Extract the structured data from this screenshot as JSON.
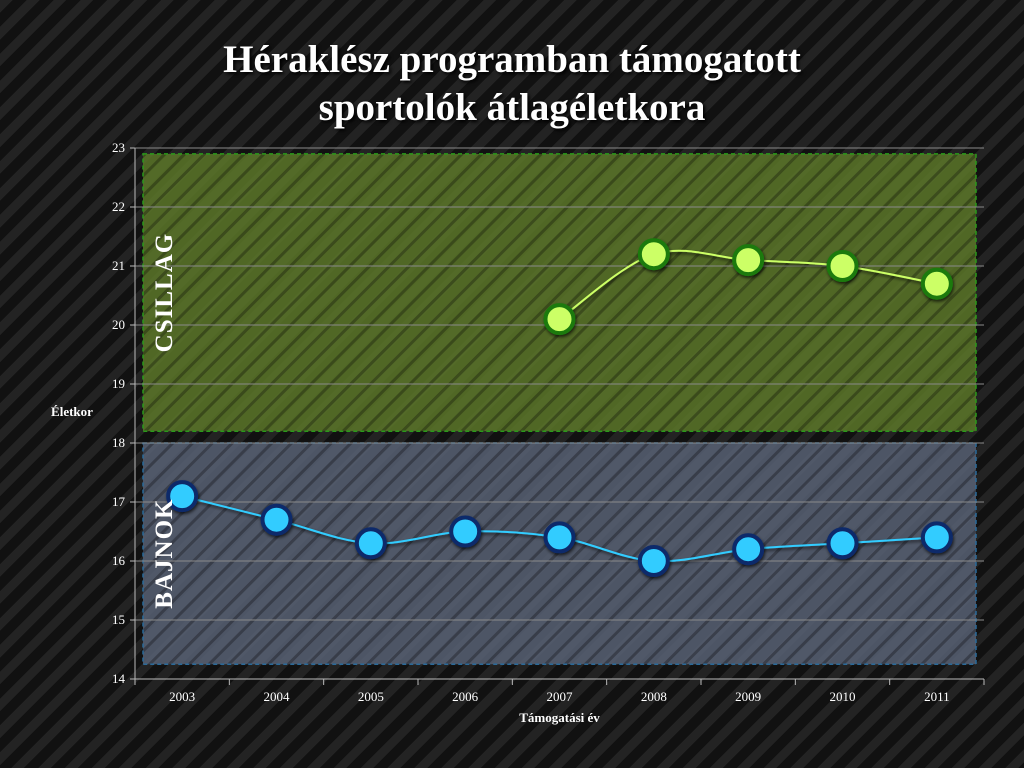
{
  "chart_data": {
    "type": "line",
    "title": [
      "Héraklész programban támogatott",
      "sportolók átlagéletkora"
    ],
    "xlabel": "Támogatási év",
    "ylabel": "Életkor",
    "categories": [
      "2003",
      "2004",
      "2005",
      "2006",
      "2007",
      "2008",
      "2009",
      "2010",
      "2011"
    ],
    "ylim": [
      14,
      23
    ],
    "yticks": [
      14,
      15,
      16,
      17,
      18,
      19,
      20,
      21,
      22,
      23
    ],
    "grid": true,
    "legend": "none",
    "series": [
      {
        "name": "CSILLAG",
        "values": [
          null,
          null,
          null,
          null,
          20.1,
          21.2,
          21.1,
          21.0,
          20.7
        ],
        "color": "#ccff66",
        "marker_edge": "#1a7a10",
        "band": [
          18.2,
          22.9
        ],
        "band_color": "#5e7a2a"
      },
      {
        "name": "BAJNOK",
        "values": [
          17.1,
          16.7,
          16.3,
          16.5,
          16.4,
          16.0,
          16.2,
          16.3,
          16.4
        ],
        "color": "#33ccff",
        "marker_edge": "#0d2a6a",
        "band": [
          14.25,
          18.0
        ],
        "band_color": "#5a6478"
      }
    ]
  }
}
